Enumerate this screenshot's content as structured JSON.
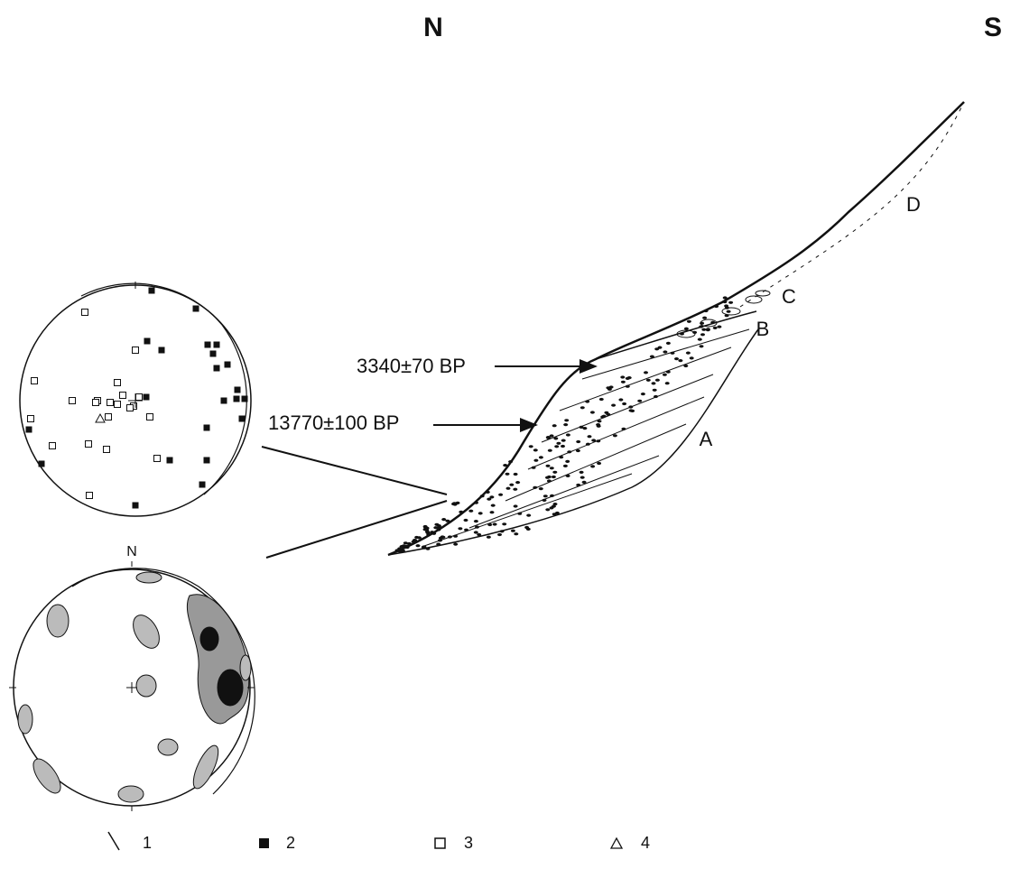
{
  "header": {
    "north": "N",
    "south": "S"
  },
  "profile": {
    "dates": [
      "3340±70 BP",
      "13770±100 BP"
    ],
    "units": [
      "A",
      "B",
      "C",
      "D"
    ]
  },
  "stereonet": {
    "north_label": "N"
  },
  "legend": {
    "items": [
      "1",
      "2",
      "3",
      "4"
    ]
  }
}
